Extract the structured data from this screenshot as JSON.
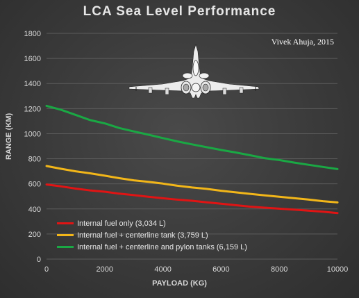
{
  "chart_data": {
    "type": "line",
    "title": "LCA Sea Level Performance",
    "credit": "Vivek Ahuja, 2015",
    "xlabel": "PAYLOAD (KG)",
    "ylabel": "RANGE (KM)",
    "xlim": [
      0,
      10000
    ],
    "ylim": [
      0,
      1800
    ],
    "xticks": [
      0,
      2000,
      4000,
      6000,
      8000,
      10000
    ],
    "yticks": [
      0,
      200,
      400,
      600,
      800,
      1000,
      1200,
      1400,
      1600,
      1800
    ],
    "grid": "horizontal",
    "legend_position": "bottom-left",
    "series": [
      {
        "name": "Internal fuel only (3,034 L)",
        "color": "#e01414",
        "x": [
          0,
          500,
          1000,
          1500,
          2000,
          2500,
          3000,
          3500,
          4000,
          4500,
          5000,
          5500,
          6000,
          6500,
          7000,
          7500,
          8000,
          8500,
          9000,
          9500,
          10000
        ],
        "values": [
          595,
          580,
          562,
          548,
          537,
          522,
          510,
          497,
          485,
          474,
          465,
          453,
          442,
          430,
          418,
          410,
          402,
          395,
          386,
          378,
          367
        ]
      },
      {
        "name": "Internal fuel + centerline tank (3,759 L)",
        "color": "#f2b619",
        "x": [
          0,
          500,
          1000,
          1500,
          2000,
          2500,
          3000,
          3500,
          4000,
          4500,
          5000,
          5500,
          6000,
          6500,
          7000,
          7500,
          8000,
          8500,
          9000,
          9500,
          10000
        ],
        "values": [
          742,
          720,
          700,
          684,
          665,
          645,
          628,
          616,
          602,
          585,
          571,
          560,
          545,
          532,
          520,
          508,
          497,
          486,
          475,
          462,
          452
        ]
      },
      {
        "name": "Internal fuel + centerline and pylon tanks (6,159 L)",
        "color": "#1aa844",
        "x": [
          0,
          500,
          1000,
          1500,
          2000,
          2500,
          3000,
          3500,
          4000,
          4500,
          5000,
          5500,
          6000,
          6500,
          7000,
          7500,
          8000,
          8500,
          9000,
          9500,
          10000
        ],
        "values": [
          1222,
          1190,
          1150,
          1108,
          1082,
          1045,
          1018,
          992,
          965,
          938,
          915,
          892,
          870,
          850,
          828,
          805,
          790,
          770,
          752,
          735,
          718
        ]
      }
    ]
  }
}
